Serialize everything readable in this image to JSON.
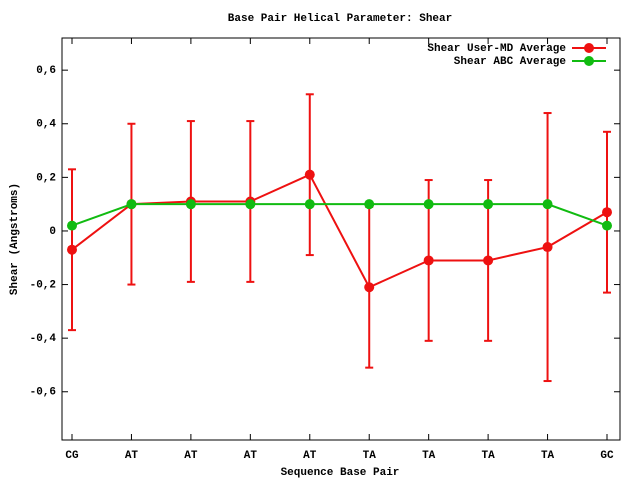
{
  "chart_data": {
    "type": "line",
    "title": "Base Pair Helical Parameter: Shear",
    "x_label": "Sequence Base Pair",
    "y_label": "Shear (Angstroms)",
    "categories": [
      "CG",
      "AT",
      "AT",
      "AT",
      "AT",
      "TA",
      "TA",
      "TA",
      "TA",
      "GC"
    ],
    "series": [
      {
        "name": "Shear User-MD Average",
        "color": "#ee1111",
        "values": [
          -0.07,
          0.1,
          0.11,
          0.11,
          0.21,
          -0.21,
          -0.11,
          -0.11,
          -0.06,
          0.07
        ],
        "errors": [
          0.3,
          0.3,
          0.3,
          0.3,
          0.3,
          0.3,
          0.3,
          0.3,
          0.5,
          0.3
        ]
      },
      {
        "name": "Shear ABC Average",
        "color": "#11bb11",
        "values": [
          0.02,
          0.1,
          0.1,
          0.1,
          0.1,
          0.1,
          0.1,
          0.1,
          0.1,
          0.02
        ]
      }
    ],
    "ylim": [
      -0.78,
      0.72
    ],
    "yticks": [
      {
        "value": -0.6,
        "label": "-0,6"
      },
      {
        "value": -0.4,
        "label": "-0,4"
      },
      {
        "value": -0.2,
        "label": "-0,2"
      },
      0,
      {
        "value": 0.2,
        "label": "0,2"
      },
      {
        "value": 0.4,
        "label": "0,4"
      },
      {
        "value": 0.6,
        "label": "0,6"
      }
    ],
    "legend": "top-right"
  }
}
